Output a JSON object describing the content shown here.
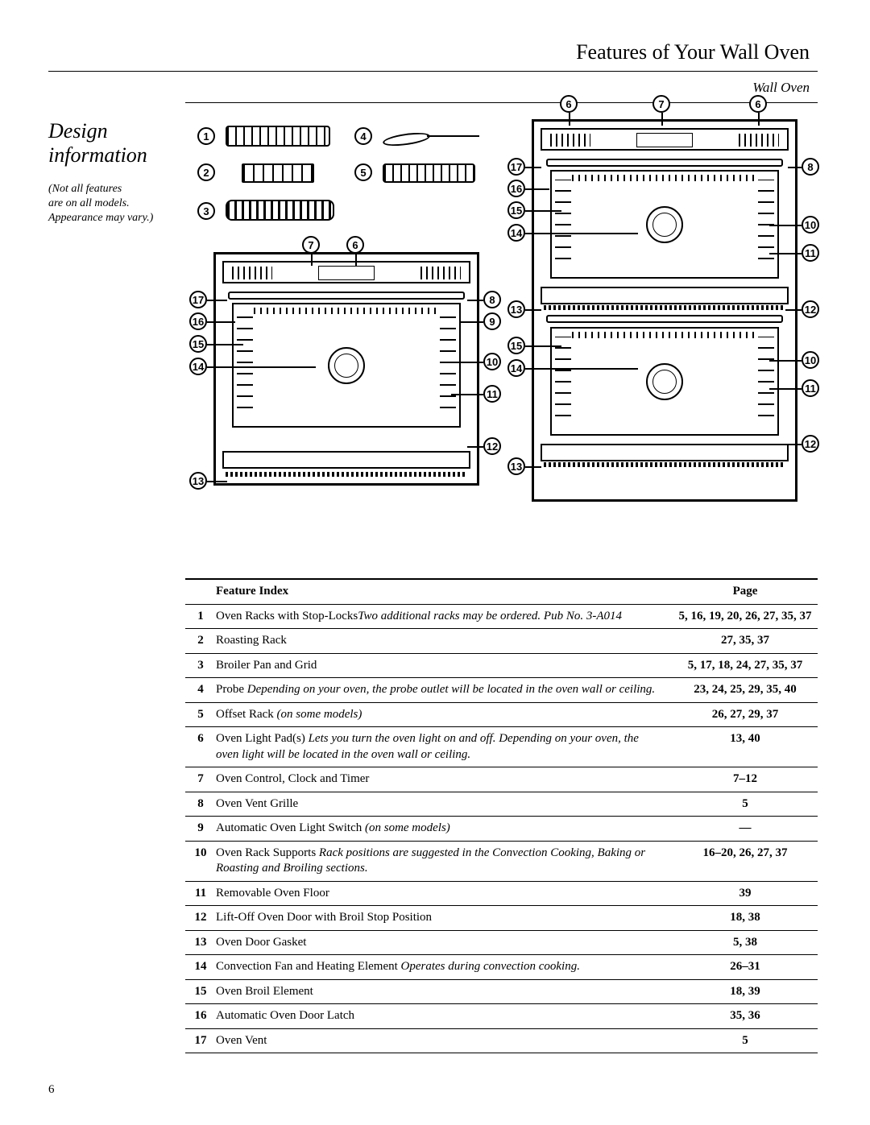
{
  "header": {
    "title": "Features of Your Wall Oven",
    "subtitle": "Wall Oven"
  },
  "sidebar": {
    "heading_line1": "Design",
    "heading_line2": "information",
    "note_line1": "(Not all features",
    "note_line2": "are on all models.",
    "note_line3": "Appearance may vary.)"
  },
  "table": {
    "head_feature": "Feature Index",
    "head_page": "Page",
    "rows": [
      {
        "num": "1",
        "desc": "Oven Racks with Stop-Locks",
        "desc_em": "Two additional racks may be ordered. Pub No. 3-A014",
        "page": "5, 16, 19, 20, 26, 27, 35, 37"
      },
      {
        "num": "2",
        "desc": "Roasting Rack",
        "desc_em": "",
        "page": "27, 35, 37"
      },
      {
        "num": "3",
        "desc": "Broiler Pan and Grid",
        "desc_em": "",
        "page": "5, 17, 18, 24, 27, 35, 37"
      },
      {
        "num": "4",
        "desc": "Probe ",
        "desc_em": "Depending on your oven, the probe outlet will be located in the oven wall or ceiling.",
        "page": "23, 24, 25, 29, 35, 40"
      },
      {
        "num": "5",
        "desc": "Offset Rack ",
        "desc_em": "(on some models)",
        "page": "26, 27, 29, 37"
      },
      {
        "num": "6",
        "desc": "Oven Light Pad(s) ",
        "desc_em": "Lets you turn the oven light on and off. Depending on your oven, the oven light will be located in the oven wall or ceiling.",
        "page": "13, 40"
      },
      {
        "num": "7",
        "desc": "Oven Control, Clock and Timer",
        "desc_em": "",
        "page": "7–12"
      },
      {
        "num": "8",
        "desc": "Oven Vent Grille",
        "desc_em": "",
        "page": "5"
      },
      {
        "num": "9",
        "desc": "Automatic Oven Light Switch ",
        "desc_em": "(on some models)",
        "page": "—"
      },
      {
        "num": "10",
        "desc": "Oven Rack Supports ",
        "desc_em": "Rack positions are suggested in the Convection Cooking, Baking or Roasting and Broiling sections.",
        "page": "16–20, 26, 27, 37"
      },
      {
        "num": "11",
        "desc": "Removable Oven Floor",
        "desc_em": "",
        "page": "39"
      },
      {
        "num": "12",
        "desc": "Lift-Off Oven Door with Broil Stop Position",
        "desc_em": "",
        "page": "18, 38"
      },
      {
        "num": "13",
        "desc": "Oven Door Gasket",
        "desc_em": "",
        "page": "5, 38"
      },
      {
        "num": "14",
        "desc": "Convection Fan and Heating Element ",
        "desc_em": "Operates during convection cooking.",
        "page": "26–31"
      },
      {
        "num": "15",
        "desc": "Oven Broil Element",
        "desc_em": "",
        "page": "18, 39"
      },
      {
        "num": "16",
        "desc": "Automatic Oven Door Latch",
        "desc_em": "",
        "page": "35, 36"
      },
      {
        "num": "17",
        "desc": "Oven Vent",
        "desc_em": "",
        "page": "5"
      }
    ]
  },
  "callouts_left": {
    "c1": "1",
    "c2": "2",
    "c3": "3",
    "c4": "4",
    "c5": "5",
    "c6": "6",
    "c7": "7",
    "c8": "8",
    "c9": "9",
    "c10": "10",
    "c11": "11",
    "c12": "12",
    "c13": "13",
    "c14": "14",
    "c15": "15",
    "c16": "16",
    "c17": "17"
  },
  "callouts_right": {
    "c6a": "6",
    "c6b": "6",
    "c7": "7",
    "c8": "8",
    "c10a": "10",
    "c10b": "10",
    "c11a": "11",
    "c11b": "11",
    "c12a": "12",
    "c12b": "12",
    "c13a": "13",
    "c13b": "13",
    "c14a": "14",
    "c14b": "14",
    "c15a": "15",
    "c15b": "15",
    "c16": "16",
    "c17": "17"
  },
  "page_number": "6"
}
